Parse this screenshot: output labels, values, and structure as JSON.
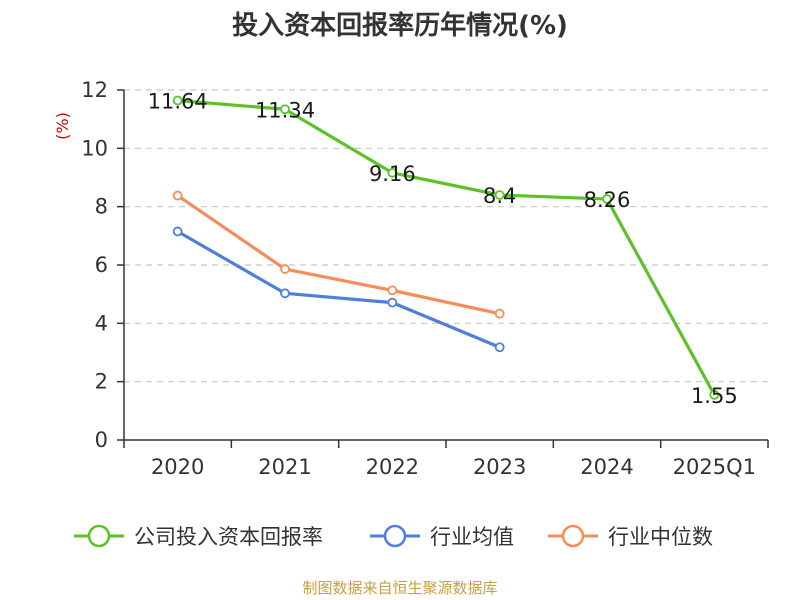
{
  "chart_data": {
    "type": "line",
    "title": "投入资本回报率历年情况(%)",
    "ylabel": "(%)",
    "categories": [
      "2020",
      "2021",
      "2022",
      "2023",
      "2024",
      "2025Q1"
    ],
    "ylim": [
      0,
      12
    ],
    "yticks": [
      0,
      2,
      4,
      6,
      8,
      10,
      12
    ],
    "grid": true,
    "legend_position": "bottom",
    "series": [
      {
        "name": "公司投入资本回报率",
        "color": "#5cc22a",
        "values": [
          11.64,
          11.34,
          9.16,
          8.4,
          8.26,
          1.55
        ],
        "show_labels": true
      },
      {
        "name": "行业均值",
        "color": "#4f7fdb",
        "values": [
          7.15,
          5.03,
          4.71,
          3.18,
          null,
          null
        ],
        "show_labels": false
      },
      {
        "name": "行业中位数",
        "color": "#f58c5a",
        "values": [
          8.38,
          5.86,
          5.13,
          4.33,
          null,
          null
        ],
        "show_labels": false
      }
    ],
    "data_labels": [
      "11.64",
      "11.34",
      "9.16",
      "8.4",
      "8.26",
      "1.55"
    ]
  },
  "footer": {
    "source": "制图数据来自恒生聚源数据库"
  }
}
